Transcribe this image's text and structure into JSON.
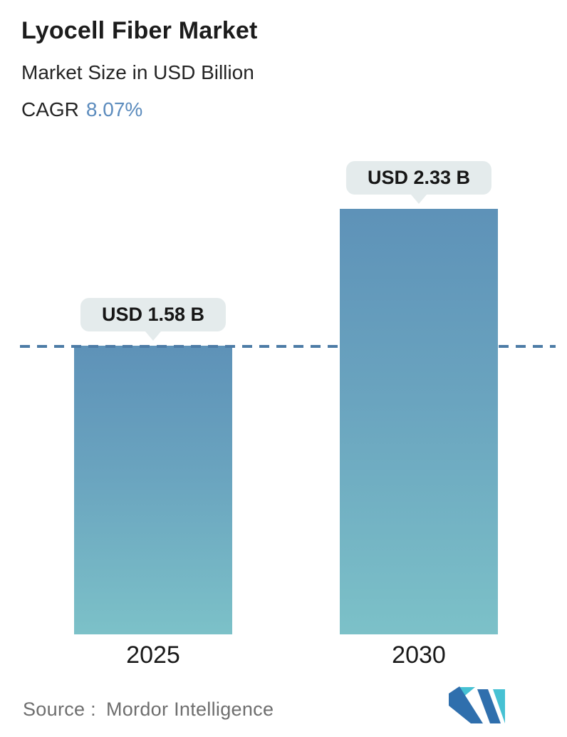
{
  "header": {
    "title": "Lyocell Fiber Market",
    "subtitle": "Market Size in USD Billion",
    "cagr_label": "CAGR",
    "cagr_value": "8.07%"
  },
  "chart_data": {
    "type": "bar",
    "categories": [
      "2025",
      "2030"
    ],
    "values": [
      1.58,
      2.33
    ],
    "bar_labels": [
      "USD 1.58 B",
      "USD 2.33 B"
    ],
    "title": "Lyocell Fiber Market",
    "subtitle": "Market Size in USD Billion",
    "cagr": "8.07%",
    "ylim": [
      0,
      2.33
    ],
    "grid": false,
    "legend": false,
    "annotations": "horizontal dashed reference line at 2025 value (USD 1.58 B) spanning full plot width",
    "bar_gradient": [
      "#5e92b8",
      "#7cc1c8"
    ]
  },
  "footer": {
    "source_label": "Source :",
    "source_value": "Mordor Intelligence"
  },
  "icons": {
    "logo": "mordor-intelligence-logo"
  },
  "colors": {
    "bar_top": "#5e92b8",
    "bar_bottom": "#7cc1c8",
    "dashed_line": "#4d7ca6",
    "cagr_accent": "#5b8bbd",
    "pill_background": "#e4ebec",
    "title_text": "#1c1c1c",
    "source_text": "#6e6e6e",
    "logo_blue": "#2f6fad",
    "logo_teal": "#46c1d3"
  }
}
